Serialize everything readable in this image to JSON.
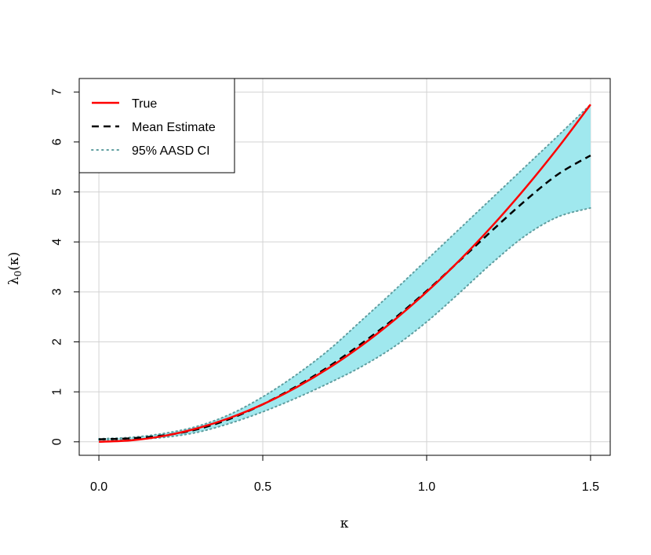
{
  "chart_data": {
    "type": "line",
    "title": "",
    "xlabel": "κ",
    "ylabel": "λ0(κ)",
    "xlim": [
      -0.06,
      1.56
    ],
    "ylim": [
      -0.27,
      7.27
    ],
    "xticks": [
      0.0,
      0.5,
      1.0,
      1.5
    ],
    "xtick_labels": [
      "0.0",
      "0.5",
      "1.0",
      "1.5"
    ],
    "yticks": [
      0,
      1,
      2,
      3,
      4,
      5,
      6,
      7
    ],
    "ytick_labels": [
      "0",
      "1",
      "2",
      "3",
      "4",
      "5",
      "6",
      "7"
    ],
    "grid": true,
    "legend_position": "top-left",
    "x": [
      0.0,
      0.1,
      0.2,
      0.3,
      0.4,
      0.5,
      0.6,
      0.7,
      0.8,
      0.9,
      1.0,
      1.1,
      1.2,
      1.3,
      1.4,
      1.5
    ],
    "series": [
      {
        "name": "True",
        "style": "solid",
        "color": "#ff0000",
        "values": [
          0.0,
          0.03,
          0.12,
          0.27,
          0.48,
          0.75,
          1.08,
          1.47,
          1.92,
          2.43,
          3.0,
          3.63,
          4.32,
          5.07,
          5.88,
          6.75
        ]
      },
      {
        "name": "Mean Estimate",
        "style": "dashed",
        "color": "#000000",
        "values": [
          0.05,
          0.07,
          0.13,
          0.25,
          0.46,
          0.75,
          1.1,
          1.5,
          1.96,
          2.46,
          3.02,
          3.62,
          4.23,
          4.82,
          5.35,
          5.73
        ]
      },
      {
        "name": "95% AASD CI",
        "style": "dotted",
        "color": "#5f9ea0",
        "fill": "#a0e8ee",
        "lower": [
          0.04,
          0.05,
          0.09,
          0.19,
          0.37,
          0.6,
          0.87,
          1.17,
          1.5,
          1.9,
          2.4,
          2.98,
          3.58,
          4.12,
          4.5,
          4.68
        ],
        "upper": [
          0.06,
          0.09,
          0.17,
          0.31,
          0.55,
          0.9,
          1.33,
          1.83,
          2.42,
          3.02,
          3.64,
          4.26,
          4.88,
          5.5,
          6.12,
          6.75
        ]
      }
    ]
  }
}
